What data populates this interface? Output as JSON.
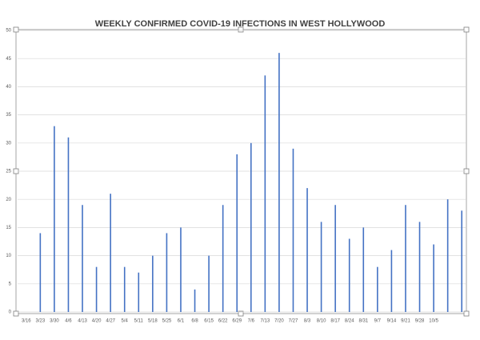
{
  "chart_data": {
    "type": "bar",
    "title": "WEEKLY CONFIRMED COVID-19 INFECTIONS IN WEST HOLLYWOOD",
    "categories": [
      "3/16",
      "3/23",
      "3/30",
      "4/6",
      "4/13",
      "4/20",
      "4/27",
      "5/4",
      "5/11",
      "5/18",
      "5/25",
      "6/1",
      "6/8",
      "6/15",
      "6/22",
      "6/29",
      "7/6",
      "7/13",
      "7/20",
      "7/27",
      "8/3",
      "8/10",
      "8/17",
      "8/24",
      "8/31",
      "9/7",
      "9/14",
      "9/21",
      "9/28",
      "10/5",
      null,
      null
    ],
    "values": [
      0,
      14,
      33,
      31,
      19,
      8,
      21,
      8,
      7,
      10,
      14,
      15,
      4,
      10,
      19,
      28,
      30,
      42,
      46,
      29,
      22,
      16,
      19,
      13,
      15,
      8,
      11,
      19,
      16,
      12,
      20,
      18
    ],
    "color": "#4472c4",
    "ylim": [
      0,
      50
    ],
    "yticks": [
      0,
      5,
      10,
      15,
      20,
      25,
      30,
      35,
      40,
      45,
      50
    ],
    "grid": true
  }
}
